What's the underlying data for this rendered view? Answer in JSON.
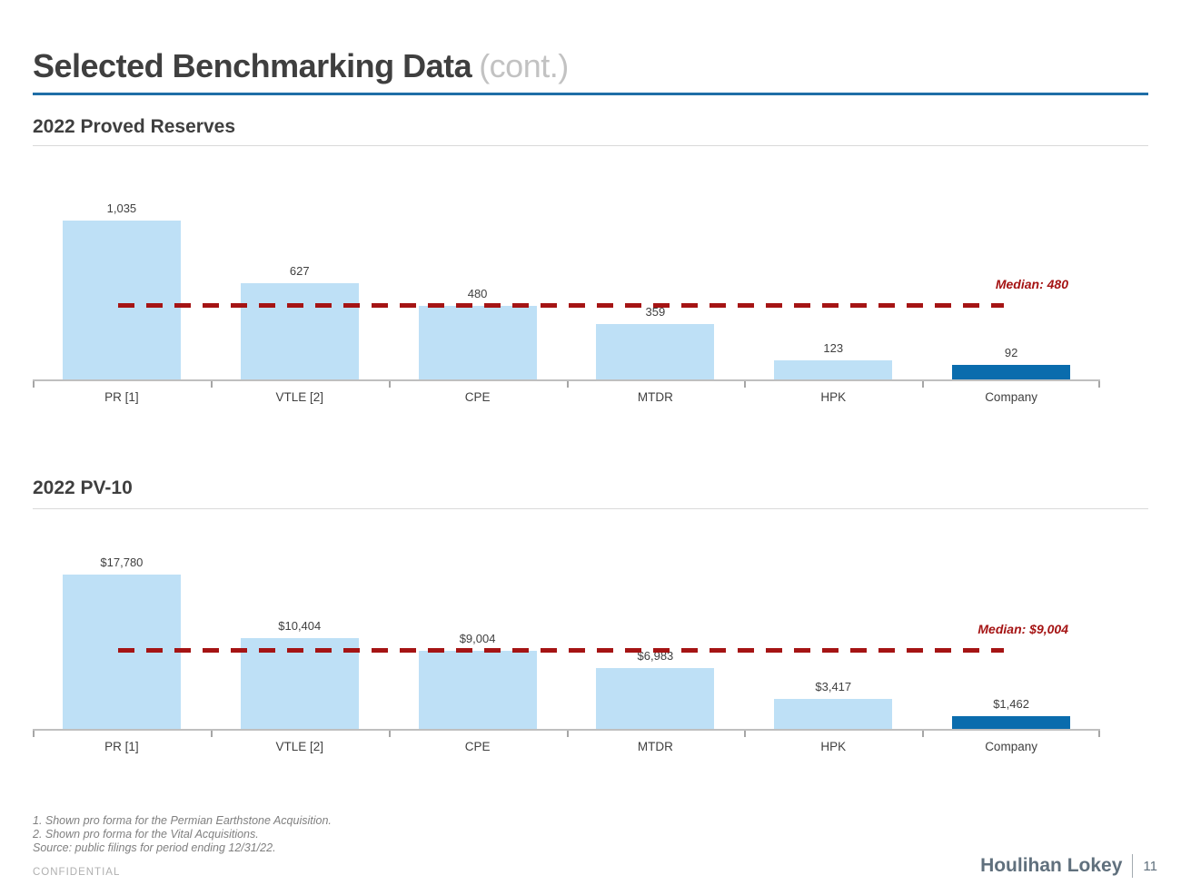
{
  "slide": {
    "title": "Selected Benchmarking Data",
    "title_suffix": "(cont.)",
    "confidential": "CONFIDENTIAL",
    "logo": "Houlihan Lokey",
    "page_number": "11"
  },
  "footnotes": [
    "1. Shown pro forma for the Permian Earthstone Acquisition.",
    "2. Shown pro forma for the Vital Acquisitions.",
    "Source: public filings for period ending 12/31/22."
  ],
  "colors": {
    "accent_blue": "#1f6ea7",
    "bar_light": "#bee0f6",
    "bar_dark": "#0a6cad",
    "median_red": "#a51414",
    "label_gray": "#404040"
  },
  "chart_data": [
    {
      "type": "bar",
      "title": "2022 Proved Reserves",
      "categories": [
        "PR [1]",
        "VTLE [2]",
        "CPE",
        "MTDR",
        "HPK",
        "Company"
      ],
      "values": [
        1035,
        627,
        480,
        359,
        123,
        92
      ],
      "value_labels": [
        "1,035",
        "627",
        "480",
        "359",
        "123",
        "92"
      ],
      "highlight_category": "Company",
      "median": 480,
      "median_label": "Median: 480",
      "xlabel": "",
      "ylabel": "",
      "ylim": [
        0,
        1300
      ],
      "grid": false,
      "legend": false
    },
    {
      "type": "bar",
      "title": "2022 PV-10",
      "categories": [
        "PR [1]",
        "VTLE [2]",
        "CPE",
        "MTDR",
        "HPK",
        "Company"
      ],
      "values": [
        17780,
        10404,
        9004,
        6983,
        3417,
        1462
      ],
      "value_labels": [
        "$17,780",
        "$10,404",
        "$9,004",
        "$6,983",
        "$3,417",
        "$1,462"
      ],
      "highlight_category": "Company",
      "median": 9004,
      "median_label": "Median: $9,004",
      "xlabel": "",
      "ylabel": "",
      "ylim": [
        0,
        23000
      ],
      "grid": false,
      "legend": false
    }
  ]
}
